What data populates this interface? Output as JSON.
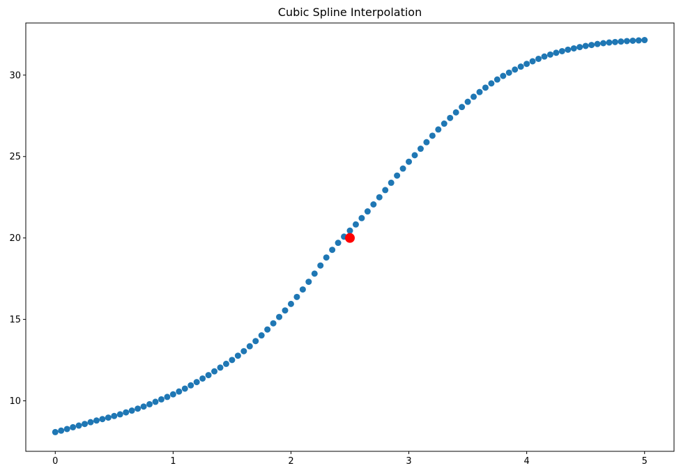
{
  "chart_data": {
    "type": "scatter",
    "title": "Cubic Spline Interpolation",
    "xlabel": "",
    "ylabel": "",
    "xlim": [
      -0.25,
      5.25
    ],
    "ylim": [
      6.9,
      33.2
    ],
    "grid": false,
    "x_ticks": [
      0,
      1,
      2,
      3,
      4,
      5
    ],
    "x_tick_labels": [
      "0",
      "1",
      "2",
      "3",
      "4",
      "5"
    ],
    "y_ticks": [
      10,
      15,
      20,
      25,
      30
    ],
    "y_tick_labels": [
      "10",
      "15",
      "20",
      "25",
      "30"
    ],
    "series": [
      {
        "color": "#1f77b4",
        "marker": "circle",
        "x": [
          0,
          0.05,
          0.1,
          0.15,
          0.2,
          0.25,
          0.3,
          0.35,
          0.4,
          0.45,
          0.5,
          0.55,
          0.6,
          0.65,
          0.7,
          0.75,
          0.8,
          0.85,
          0.9,
          0.95,
          1,
          1.05,
          1.1,
          1.15,
          1.2,
          1.25,
          1.3,
          1.35,
          1.4,
          1.45,
          1.5,
          1.55,
          1.6,
          1.65,
          1.7,
          1.75,
          1.8,
          1.85,
          1.9,
          1.95,
          2,
          2.05,
          2.1,
          2.15,
          2.2,
          2.25,
          2.3,
          2.35,
          2.4,
          2.45,
          2.5,
          2.55,
          2.6,
          2.65,
          2.7,
          2.75,
          2.8,
          2.85,
          2.9,
          2.95,
          3,
          3.05,
          3.1,
          3.15,
          3.2,
          3.25,
          3.3,
          3.35,
          3.4,
          3.45,
          3.5,
          3.55,
          3.6,
          3.65,
          3.7,
          3.75,
          3.8,
          3.85,
          3.9,
          3.95,
          4,
          4.05,
          4.1,
          4.15,
          4.2,
          4.25,
          4.3,
          4.35,
          4.4,
          4.45,
          4.5,
          4.55,
          4.6,
          4.65,
          4.7,
          4.75,
          4.8,
          4.85,
          4.9,
          4.95,
          5
        ],
        "y": [
          8.08,
          8.17,
          8.27,
          8.38,
          8.48,
          8.58,
          8.69,
          8.79,
          8.88,
          8.97,
          9.07,
          9.17,
          9.29,
          9.4,
          9.52,
          9.65,
          9.79,
          9.94,
          10.09,
          10.24,
          10.4,
          10.57,
          10.75,
          10.95,
          11.15,
          11.37,
          11.58,
          11.81,
          12.04,
          12.27,
          12.51,
          12.77,
          13.05,
          13.35,
          13.67,
          14.02,
          14.38,
          14.76,
          15.15,
          15.55,
          15.95,
          16.38,
          16.84,
          17.31,
          17.81,
          18.31,
          18.8,
          19.27,
          19.7,
          20.08,
          20.45,
          20.83,
          21.22,
          21.63,
          22.06,
          22.5,
          22.94,
          23.39,
          23.83,
          24.26,
          24.68,
          25.08,
          25.48,
          25.88,
          26.28,
          26.66,
          27.02,
          27.37,
          27.71,
          28.04,
          28.36,
          28.67,
          28.96,
          29.23,
          29.49,
          29.73,
          29.95,
          30.15,
          30.34,
          30.52,
          30.69,
          30.85,
          31.0,
          31.14,
          31.26,
          31.37,
          31.47,
          31.56,
          31.64,
          31.72,
          31.79,
          31.85,
          31.91,
          31.96,
          32.0,
          32.03,
          32.06,
          32.09,
          32.11,
          32.13,
          32.15
        ]
      },
      {
        "color": "#ff0000",
        "marker": "circle",
        "x": [
          2.5
        ],
        "y": [
          20.0
        ]
      }
    ]
  }
}
